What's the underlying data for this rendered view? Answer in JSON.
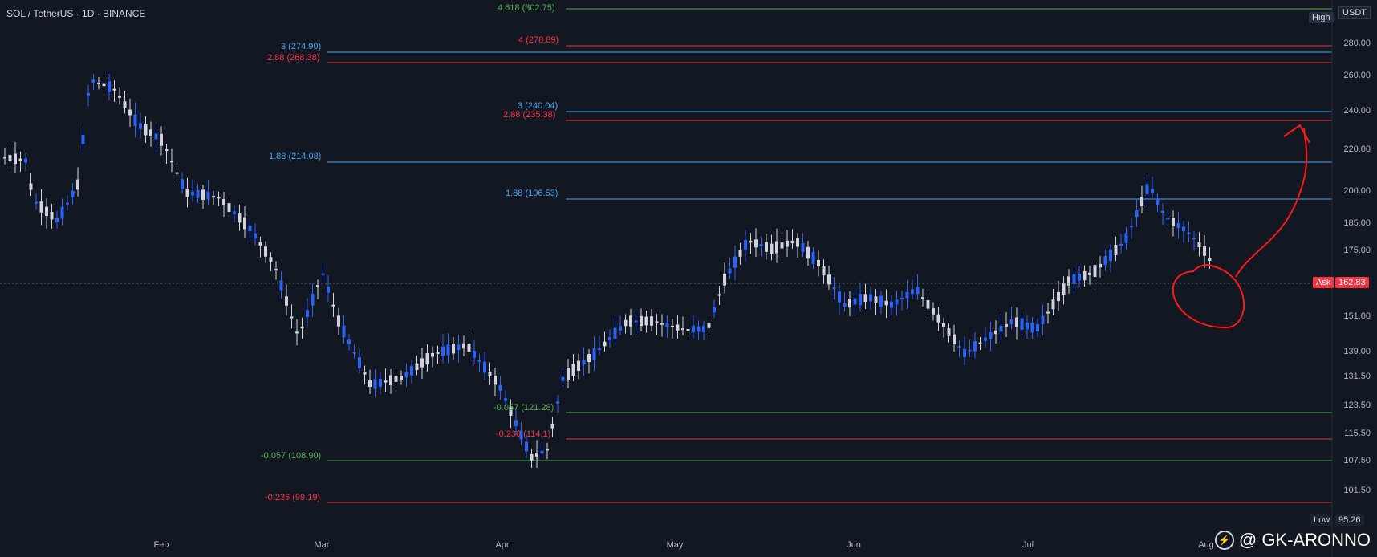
{
  "header": {
    "symbol": "SOL / TetherUS · 1D · BINANCE"
  },
  "price_axis": {
    "currency": "USDT",
    "ticks": [
      "280.00",
      "260.00",
      "240.00",
      "220.00",
      "200.00",
      "185.00",
      "175.00",
      "151.00",
      "139.00",
      "131.50",
      "123.50",
      "115.50",
      "107.50",
      "101.50"
    ],
    "high_label": "High",
    "low_label": "Low",
    "low_value": "95.26",
    "ask_label": "Ask",
    "ask_value": "162.83"
  },
  "time_axis": {
    "labels": [
      "Feb",
      "Mar",
      "Apr",
      "May",
      "Jun",
      "Jul",
      "Aug"
    ]
  },
  "fib_labels": [
    {
      "text": "4.618 (302.75)",
      "color": "#4caf50"
    },
    {
      "text": "4 (278.89)",
      "color": "#f23645"
    },
    {
      "text": "3 (274.90)",
      "color": "#42a5f5"
    },
    {
      "text": "2.88 (268.38)",
      "color": "#f23645"
    },
    {
      "text": "3 (240.04)",
      "color": "#42a5f5"
    },
    {
      "text": "2.88 (235.38)",
      "color": "#f23645"
    },
    {
      "text": "1.88 (214.08)",
      "color": "#42a5f5"
    },
    {
      "text": "1.88 (196.53)",
      "color": "#42a5f5"
    },
    {
      "text": "-0.057 (121.28)",
      "color": "#4caf50"
    },
    {
      "text": "-0.236 (114.1)",
      "color": "#f23645"
    },
    {
      "text": "-0.057 (108.90)",
      "color": "#4caf50"
    },
    {
      "text": "-0.236 (99.19)",
      "color": "#f23645"
    }
  ],
  "watermark": {
    "text": "@ GK-ARONNO"
  },
  "colors": {
    "bull": "#2962ff",
    "bear": "#d1d4dc",
    "bg": "#131722"
  }
}
